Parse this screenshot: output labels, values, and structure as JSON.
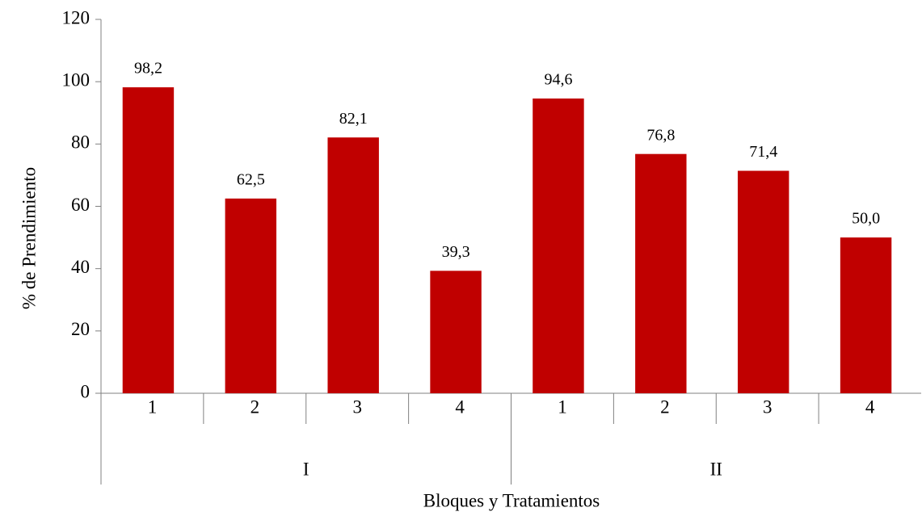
{
  "chart_data": {
    "type": "bar",
    "xlabel": "Bloques y Tratamientos",
    "ylabel": "% de Prendimiento",
    "categories": [
      "1",
      "2",
      "3",
      "4",
      "1",
      "2",
      "3",
      "4"
    ],
    "groups": [
      "I",
      "II"
    ],
    "values": [
      98.2,
      62.5,
      82.1,
      39.3,
      94.6,
      76.8,
      71.4,
      50.0
    ],
    "value_labels": [
      "98,2",
      "62,5",
      "82,1",
      "39,3",
      "94,6",
      "76,8",
      "71,4",
      "50,0"
    ],
    "color": "#c00000",
    "ylim": [
      0,
      120
    ],
    "yticks": [
      0,
      20,
      40,
      60,
      80,
      100,
      120
    ],
    "grid": false
  }
}
